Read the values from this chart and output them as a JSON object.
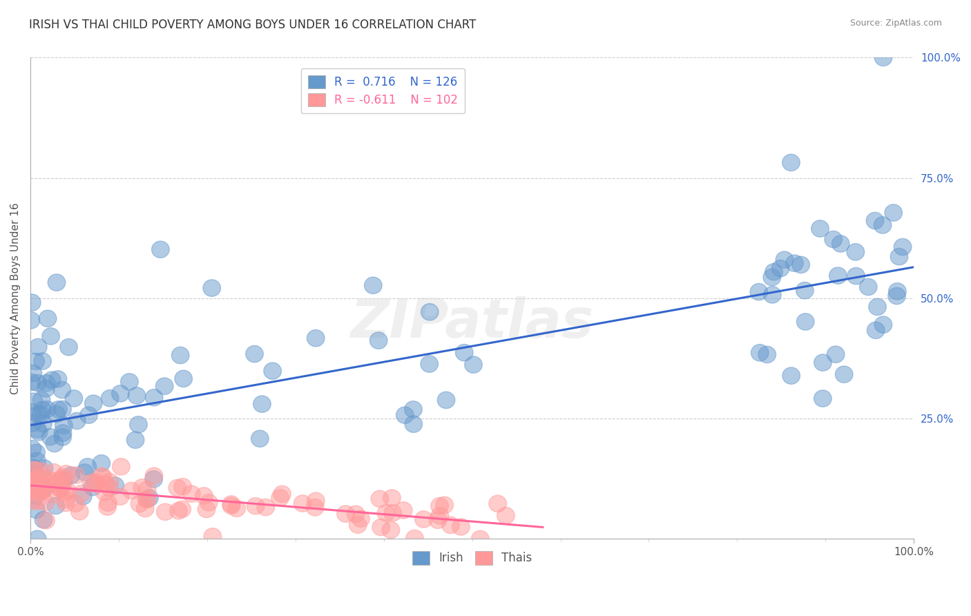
{
  "title": "IRISH VS THAI CHILD POVERTY AMONG BOYS UNDER 16 CORRELATION CHART",
  "source": "Source: ZipAtlas.com",
  "ylabel": "Child Poverty Among Boys Under 16",
  "xlim": [
    0.0,
    1.0
  ],
  "ylim": [
    0.0,
    1.0
  ],
  "irish_R": 0.716,
  "irish_N": 126,
  "thai_R": -0.611,
  "thai_N": 102,
  "irish_color": "#6699CC",
  "thai_color": "#FF9999",
  "irish_line_color": "#3366CC",
  "thai_line_color": "#FF6699",
  "legend_irish_label": "R =  0.716    N = 126",
  "legend_thai_label": "R = -0.611    N = 102",
  "watermark": "ZIPatlas",
  "background_color": "#FFFFFF",
  "grid_color": "#CCCCCC",
  "title_color": "#333333",
  "irish_seed": 42,
  "thai_seed": 99
}
